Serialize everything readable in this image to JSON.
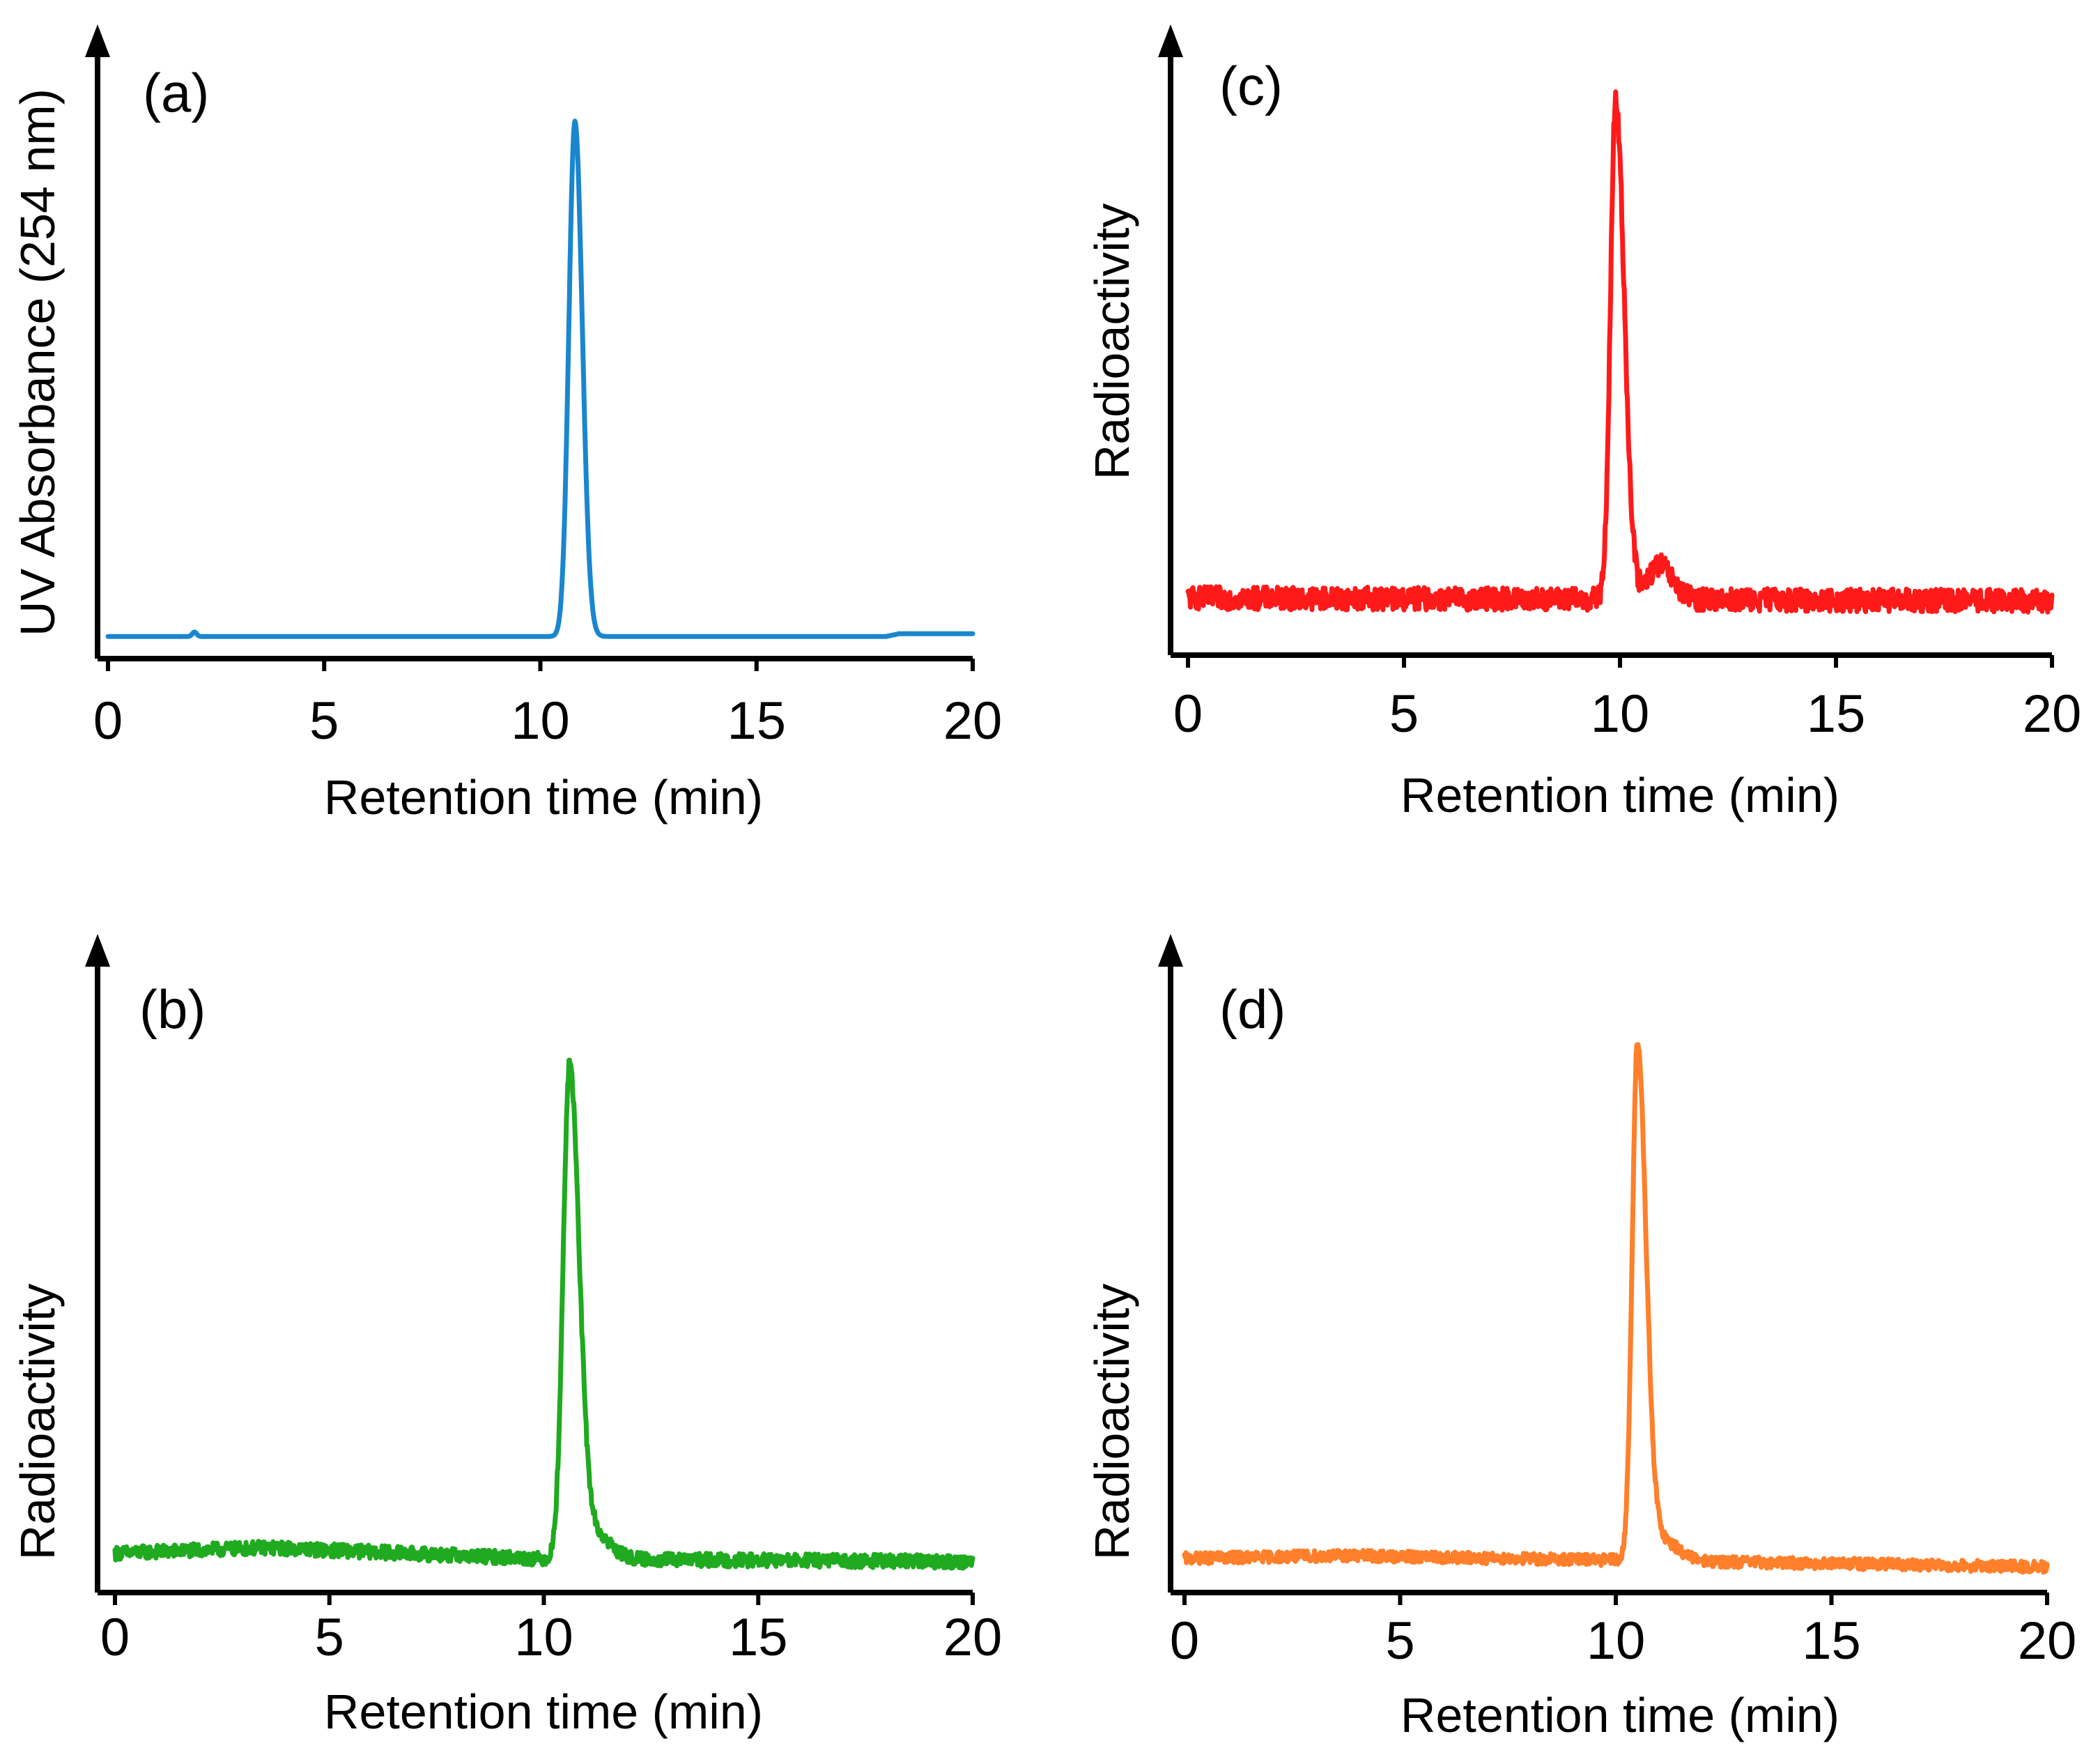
{
  "chart_data": [
    {
      "type": "line",
      "panel": "(a)",
      "xlabel": "Retention time (min)",
      "ylabel": "UV Absorbance (254 nm)",
      "xlim": [
        0,
        20
      ],
      "ylim": [
        0,
        1
      ],
      "xticks": [
        "0",
        "5",
        "10",
        "15",
        "20"
      ],
      "color": "#1a86cf",
      "series": [
        {
          "name": "UV 254 nm",
          "baseline": 0.04,
          "noise": 0.0,
          "peaks": [
            {
              "center": 10.8,
              "height": 0.93,
              "width_left": 0.14,
              "width_right": 0.17
            },
            {
              "center": 2.0,
              "height": 0.008,
              "width_left": 0.05,
              "width_right": 0.05
            }
          ],
          "drift": [
            [
              0,
              0.04
            ],
            [
              18,
              0.04
            ],
            [
              18.3,
              0.045
            ],
            [
              20,
              0.045
            ]
          ]
        }
      ]
    },
    {
      "type": "line",
      "panel": "(b)",
      "xlabel": "Retention time (min)",
      "ylabel": "Radioactivity",
      "xlim": [
        0,
        20
      ],
      "ylim": [
        0,
        1
      ],
      "xticks": [
        "0",
        "5",
        "10",
        "15",
        "20"
      ],
      "color": "#1faa1f",
      "series": [
        {
          "name": "Radioactivity",
          "baseline": 0.07,
          "noise": 0.012,
          "peaks": [
            {
              "center": 10.6,
              "height": 0.87,
              "width_left": 0.15,
              "width_right": 0.22
            },
            {
              "center": 11.1,
              "height": 0.05,
              "width_left": 0.3,
              "width_right": 0.4
            }
          ],
          "drift": [
            [
              0,
              0.07
            ],
            [
              3.5,
              0.08
            ],
            [
              10,
              0.06
            ],
            [
              20,
              0.055
            ]
          ]
        }
      ]
    },
    {
      "type": "line",
      "panel": "(c)",
      "xlabel": "Retention time (min)",
      "ylabel": "Radioactivity",
      "xlim": [
        0,
        20
      ],
      "ylim": [
        0,
        1
      ],
      "xticks": [
        "0",
        "5",
        "10",
        "15",
        "20"
      ],
      "color": "#ff1a1a",
      "series": [
        {
          "name": "Radioactivity",
          "baseline": 0.1,
          "noise": 0.02,
          "peaks": [
            {
              "center": 9.9,
              "height": 0.87,
              "width_left": 0.12,
              "width_right": 0.2
            },
            {
              "center": 10.9,
              "height": 0.06,
              "width_left": 0.25,
              "width_right": 0.3
            }
          ],
          "drift": [
            [
              0,
              0.1
            ],
            [
              20,
              0.095
            ]
          ]
        }
      ]
    },
    {
      "type": "line",
      "panel": "(d)",
      "xlabel": "Retention time (min)",
      "ylabel": "Radioactivity",
      "xlim": [
        0,
        20
      ],
      "ylim": [
        0,
        1
      ],
      "xticks": [
        "0",
        "5",
        "10",
        "15",
        "20"
      ],
      "color": "#ff7f2a",
      "series": [
        {
          "name": "Radioactivity",
          "baseline": 0.06,
          "noise": 0.01,
          "peaks": [
            {
              "center": 10.5,
              "height": 0.9,
              "width_left": 0.12,
              "width_right": 0.2
            },
            {
              "center": 11.0,
              "height": 0.04,
              "width_left": 0.3,
              "width_right": 0.4
            }
          ],
          "drift": [
            [
              0,
              0.06
            ],
            [
              3.5,
              0.065
            ],
            [
              20,
              0.045
            ]
          ]
        }
      ]
    }
  ]
}
